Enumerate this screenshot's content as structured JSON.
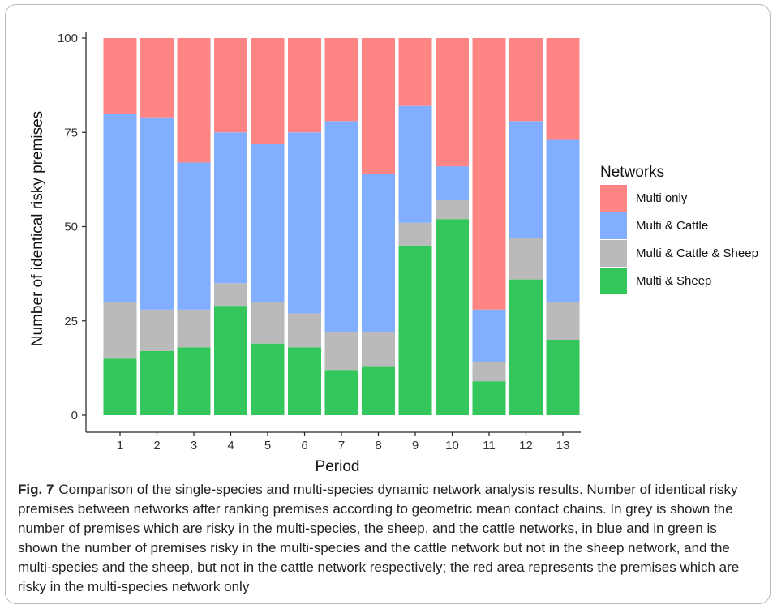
{
  "chart_data": {
    "type": "bar",
    "stacked": true,
    "xlabel": "Period",
    "ylabel": "Number of identical risky premises",
    "ylim": [
      0,
      100
    ],
    "yticks": [
      0,
      25,
      50,
      75,
      100
    ],
    "categories": [
      "1",
      "2",
      "3",
      "4",
      "5",
      "6",
      "7",
      "8",
      "9",
      "10",
      "11",
      "12",
      "13"
    ],
    "legend": {
      "title": "Networks",
      "position": "right",
      "entries": [
        "Multi only",
        "Multi & Cattle",
        "Multi & Cattle & Sheep",
        "Multi & Sheep"
      ]
    },
    "series": [
      {
        "name": "Multi & Sheep",
        "color": "#33c65a",
        "values": [
          15,
          17,
          18,
          29,
          19,
          18,
          12,
          13,
          45,
          52,
          9,
          36,
          20
        ]
      },
      {
        "name": "Multi & Cattle & Sheep",
        "color": "#bababa",
        "values": [
          15,
          11,
          10,
          6,
          11,
          9,
          10,
          9,
          6,
          5,
          5,
          11,
          10
        ]
      },
      {
        "name": "Multi & Cattle",
        "color": "#82aeff",
        "values": [
          50,
          51,
          39,
          40,
          42,
          48,
          56,
          42,
          31,
          9,
          14,
          31,
          43
        ]
      },
      {
        "name": "Multi only",
        "color": "#ff8585",
        "values": [
          20,
          21,
          33,
          25,
          28,
          25,
          22,
          36,
          18,
          34,
          72,
          22,
          27
        ]
      }
    ],
    "grid": false
  },
  "caption": {
    "label": "Fig. 7",
    "text": "Comparison of the single-species and multi-species dynamic network analysis results. Number of identical risky premises between networks after ranking premises according to geometric mean contact chains. In grey is shown the number of premises which are risky in the multi-species, the sheep, and the cattle networks, in blue and in green is shown the number of premises risky in the multi-species and the cattle network but not in the sheep network, and the multi-species and the sheep, but not in the cattle network respectively; the red area represents the premises which are risky in the multi-species network only"
  }
}
